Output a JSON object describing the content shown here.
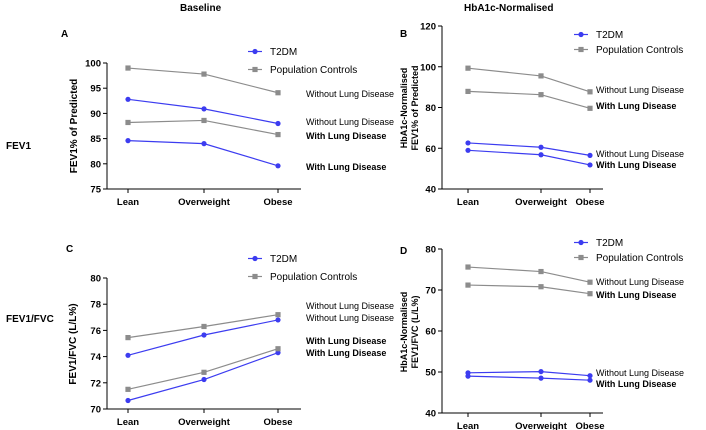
{
  "column_titles": [
    "Baseline",
    "HbA1c-Normalised"
  ],
  "row_labels": [
    "FEV1",
    "FEV1/FVC"
  ],
  "colors": {
    "t2dm": "#3c3cf0",
    "controls": "#8c8c8c",
    "axis": "#000000"
  },
  "chart_data": [
    {
      "panel": "A",
      "type": "line",
      "categories": [
        "Lean",
        "Overweight",
        "Obese"
      ],
      "ylabel": "FEV1% of Predicted",
      "ylim": [
        75,
        100
      ],
      "yticks": [
        75,
        80,
        85,
        90,
        95,
        100
      ],
      "legend": [
        "T2DM",
        "Population Controls"
      ],
      "series": [
        {
          "group": "T2DM",
          "condition": "Without Lung Disease",
          "values": [
            92.8,
            90.9,
            88.0
          ]
        },
        {
          "group": "T2DM",
          "condition": "With Lung Disease",
          "values": [
            84.6,
            84.0,
            79.6
          ]
        },
        {
          "group": "Population Controls",
          "condition": "Without Lung Disease",
          "values": [
            99.0,
            97.8,
            94.1
          ]
        },
        {
          "group": "Population Controls",
          "condition": "With Lung Disease",
          "values": [
            88.2,
            88.6,
            85.8
          ]
        }
      ],
      "annotations": [
        {
          "text": "Without Lung Disease",
          "bold": false
        },
        {
          "text": "Without Lung Disease",
          "bold": false
        },
        {
          "text": "With Lung Disease",
          "bold": true
        },
        {
          "text": "With Lung Disease",
          "bold": true
        }
      ]
    },
    {
      "panel": "B",
      "type": "line",
      "categories": [
        "Lean",
        "Overweight",
        "Obese"
      ],
      "ylabel": "HbA1c-Normalised FEV1% of Predicted",
      "ylim": [
        40,
        120
      ],
      "yticks": [
        40,
        60,
        80,
        100,
        120
      ],
      "legend": [
        "T2DM",
        "Population Controls"
      ],
      "series": [
        {
          "group": "T2DM",
          "condition": "Without Lung Disease",
          "values": [
            62.6,
            60.5,
            56.5
          ]
        },
        {
          "group": "T2DM",
          "condition": "With Lung Disease",
          "values": [
            59.0,
            56.8,
            51.8
          ]
        },
        {
          "group": "Population Controls",
          "condition": "Without Lung Disease",
          "values": [
            99.3,
            95.5,
            87.7
          ]
        },
        {
          "group": "Population Controls",
          "condition": "With Lung Disease",
          "values": [
            87.9,
            86.3,
            79.6
          ]
        }
      ],
      "annotations": [
        {
          "text": "Without Lung Disease",
          "bold": false
        },
        {
          "text": "With Lung Disease",
          "bold": true
        },
        {
          "text": "Without Lung Disease",
          "bold": false
        },
        {
          "text": "With Lung Disease",
          "bold": true
        }
      ]
    },
    {
      "panel": "C",
      "type": "line",
      "categories": [
        "Lean",
        "Overweight",
        "Obese"
      ],
      "ylabel": "FEV1/FVC (L/L%)",
      "ylim": [
        70,
        80
      ],
      "yticks": [
        70,
        72,
        74,
        76,
        78,
        80
      ],
      "legend": [
        "T2DM",
        "Population Controls"
      ],
      "series": [
        {
          "group": "T2DM",
          "condition": "Without Lung Disease",
          "values": [
            74.1,
            75.65,
            76.8
          ]
        },
        {
          "group": "T2DM",
          "condition": "With Lung Disease",
          "values": [
            70.65,
            72.25,
            74.3
          ]
        },
        {
          "group": "Population Controls",
          "condition": "Without Lung Disease",
          "values": [
            75.45,
            76.3,
            77.2
          ]
        },
        {
          "group": "Population Controls",
          "condition": "With Lung Disease",
          "values": [
            71.5,
            72.8,
            74.6
          ]
        }
      ],
      "annotations": [
        {
          "text": "Without Lung Disease",
          "bold": false
        },
        {
          "text": "Without Lung Disease",
          "bold": false
        },
        {
          "text": "With Lung Disease",
          "bold": true
        },
        {
          "text": "With Lung Disease",
          "bold": true
        }
      ]
    },
    {
      "panel": "D",
      "type": "line",
      "categories": [
        "Lean",
        "Overweight",
        "Obese"
      ],
      "ylabel": "HbA1c-Normalised FEV1/FVC (L/L%)",
      "ylim": [
        40,
        80
      ],
      "yticks": [
        40,
        50,
        60,
        70,
        80
      ],
      "legend": [
        "T2DM",
        "Population Controls"
      ],
      "series": [
        {
          "group": "T2DM",
          "condition": "Without Lung Disease",
          "values": [
            49.8,
            50.1,
            49.1
          ]
        },
        {
          "group": "T2DM",
          "condition": "With Lung Disease",
          "values": [
            49.0,
            48.5,
            48.0
          ]
        },
        {
          "group": "Population Controls",
          "condition": "Without Lung Disease",
          "values": [
            75.6,
            74.5,
            71.9
          ]
        },
        {
          "group": "Population Controls",
          "condition": "With Lung Disease",
          "values": [
            71.2,
            70.8,
            69.1
          ]
        }
      ],
      "annotations": [
        {
          "text": "Without Lung Disease",
          "bold": false
        },
        {
          "text": "With Lung Disease",
          "bold": true
        },
        {
          "text": "Without Lung Disease",
          "bold": false
        },
        {
          "text": "With Lung Disease",
          "bold": true
        }
      ]
    }
  ]
}
